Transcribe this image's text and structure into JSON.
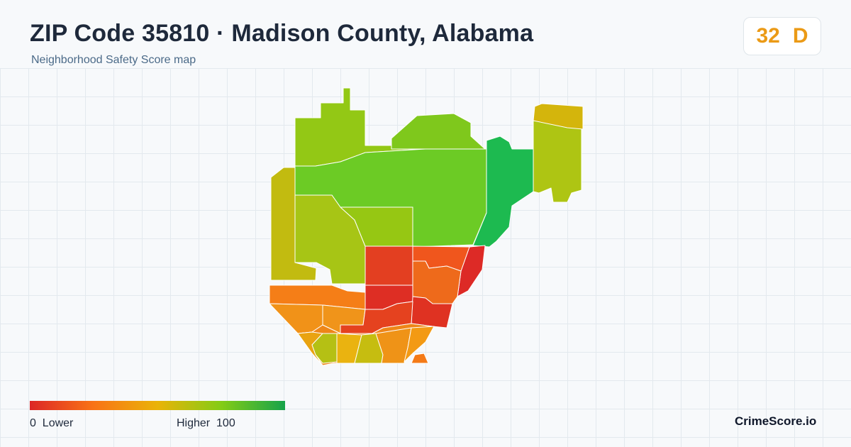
{
  "header": {
    "title": "ZIP Code 35810 · Madison County, Alabama",
    "subtitle": "Neighborhood Safety Score map"
  },
  "score": {
    "value": "32",
    "grade": "D",
    "color": "#eb9a16"
  },
  "legend": {
    "min_value": "0",
    "min_label": "Lower",
    "max_label": "Higher",
    "max_value": "100",
    "colors": [
      "#dc2626",
      "#f97316",
      "#eab308",
      "#84cc16",
      "#16a34a"
    ]
  },
  "brand": "CrimeScore.io",
  "map": {
    "regions": [
      {
        "name": "north-west-tract",
        "color": "#93c815"
      },
      {
        "name": "north-central-tract",
        "color": "#7fc81c"
      },
      {
        "name": "central-large-tract",
        "color": "#6ccb25"
      },
      {
        "name": "west-tract",
        "color": "#c2bb10"
      },
      {
        "name": "inner-west-tract",
        "color": "#a7c515"
      },
      {
        "name": "center-north-tract",
        "color": "#96c713"
      },
      {
        "name": "east-corridor-tract",
        "color": "#1dba50"
      },
      {
        "name": "far-east-tract",
        "color": "#aec513"
      },
      {
        "name": "far-east-top-tract",
        "color": "#d4b50c"
      },
      {
        "name": "center-red-tract",
        "color": "#e33f21"
      },
      {
        "name": "center-red-lower-tract",
        "color": "#de2e24"
      },
      {
        "name": "east-red-strip-tract",
        "color": "#dd2a26"
      },
      {
        "name": "south-center-east-tract",
        "color": "#f0561d"
      },
      {
        "name": "south-center-east-2-tract",
        "color": "#ee6a1b"
      },
      {
        "name": "southeast-red-tract",
        "color": "#df3222"
      },
      {
        "name": "southwest-orange-tract",
        "color": "#f57e17"
      },
      {
        "name": "southwest-orange-2-tract",
        "color": "#f19218"
      },
      {
        "name": "south-mid-tract",
        "color": "#f0941a"
      },
      {
        "name": "south-red-tract",
        "color": "#e5421f"
      },
      {
        "name": "south-orange-tract",
        "color": "#ee8618"
      },
      {
        "name": "south-yellow-tract",
        "color": "#e9a311"
      },
      {
        "name": "south-lime-tract",
        "color": "#b5c014"
      },
      {
        "name": "south-yellow-2-tract",
        "color": "#eab310"
      },
      {
        "name": "south-lime-2-tract",
        "color": "#c6bd10"
      },
      {
        "name": "south-orange-2-tract",
        "color": "#ef9317"
      },
      {
        "name": "south-orange-3-tract",
        "color": "#f39a14"
      },
      {
        "name": "south-orange-4-tract",
        "color": "#f47a17"
      }
    ]
  }
}
